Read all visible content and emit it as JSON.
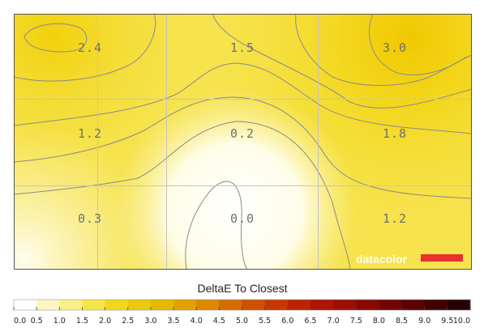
{
  "chart_data": {
    "type": "heatmap",
    "title": "DeltaE To Closest",
    "grid": true,
    "rows": 3,
    "cols": 3,
    "values": [
      [
        2.4,
        1.5,
        3.0
      ],
      [
        1.2,
        0.2,
        1.8
      ],
      [
        0.3,
        0.0,
        1.2
      ]
    ],
    "value_labels": [
      [
        "2.4",
        "1.5",
        "3.0"
      ],
      [
        "1.2",
        "0.2",
        "1.8"
      ],
      [
        "0.3",
        "0.0",
        "1.2"
      ]
    ],
    "colorbar": {
      "range": [
        0.0,
        10.0
      ],
      "tick_labels": [
        "0.0",
        "0.5",
        "1.0",
        "1.5",
        "2.0",
        "2.5",
        "3.0",
        "3.5",
        "4.0",
        "4.5",
        "5.0",
        "5.5",
        "6.0",
        "6.5",
        "7.0",
        "7.5",
        "8.0",
        "8.5",
        "9.0",
        "9.5",
        "10.0"
      ],
      "colors": [
        "#ffffff",
        "#fcf6c4",
        "#faf08a",
        "#f6e54a",
        "#f1d81a",
        "#ebc90c",
        "#e6b800",
        "#e1a100",
        "#dc8800",
        "#d56c00",
        "#ce5000",
        "#c63800",
        "#bc2400",
        "#ad1600",
        "#9c0e00",
        "#880800",
        "#720404",
        "#5a0202",
        "#420101",
        "#260000",
        "#000000"
      ]
    }
  },
  "branding": {
    "logo_text": "datacolor",
    "logo_color": "#e83030"
  }
}
